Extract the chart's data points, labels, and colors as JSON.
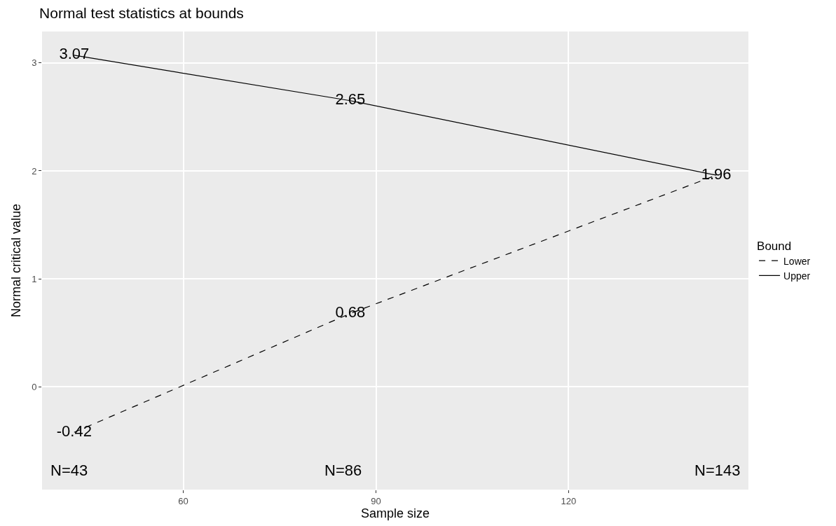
{
  "chart_data": {
    "type": "line",
    "title": "Normal test statistics at bounds",
    "xlabel": "Sample size",
    "ylabel": "Normal critical value",
    "legend_title": "Bound",
    "x": [
      43,
      86,
      143
    ],
    "series": [
      {
        "name": "Lower",
        "color": "#000000",
        "line_style": "dashed",
        "values": [
          -0.42,
          0.68,
          1.96
        ],
        "value_labels": [
          "-0.42",
          "0.68",
          "1.96"
        ]
      },
      {
        "name": "Upper",
        "color": "#000000",
        "line_style": "solid",
        "values": [
          3.07,
          2.65,
          1.96
        ],
        "value_labels": [
          "3.07",
          "2.65",
          null
        ]
      }
    ],
    "annotations": [
      "N=43",
      "N=86",
      "N=143"
    ],
    "xlim": [
      38,
      148
    ],
    "xticks": [
      60,
      90,
      120
    ],
    "ylim": [
      -0.95,
      3.29
    ],
    "yticks": [
      0,
      1,
      2,
      3
    ],
    "grid": true,
    "legend": "right",
    "marker": "none"
  }
}
